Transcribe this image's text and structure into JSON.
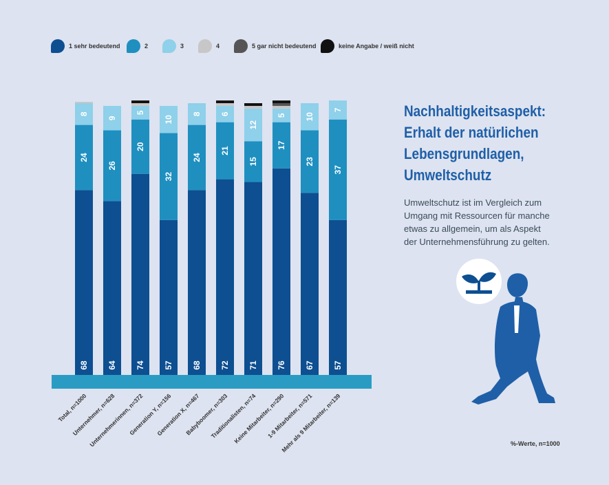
{
  "legend": [
    {
      "label": "1 sehr bedeutend",
      "color": "#0d4f91"
    },
    {
      "label": "2",
      "color": "#1f8fc0"
    },
    {
      "label": "3",
      "color": "#8fd0ea"
    },
    {
      "label": "4",
      "color": "#c7c7c7"
    },
    {
      "label": "5 gar nicht bedeutend",
      "color": "#555555"
    },
    {
      "label": "keine Angabe / weiß nicht",
      "color": "#111111"
    }
  ],
  "headline": [
    "Nachhaltigkeitsaspekt:",
    "Erhalt der natürlichen",
    "Lebensgrundlagen,",
    "Umweltschutz"
  ],
  "body_lines": [
    "Umweltschutz ist im Vergleich zum",
    "Umgang mit Ressourcen für manche",
    "etwas zu allgemein, um als Aspekt",
    "der Unternehmensführung zu gelten."
  ],
  "note": "%-Werte, n=1000",
  "icon": "sprout-icon",
  "chart_data": {
    "type": "bar",
    "stacked": true,
    "unit": "%",
    "ylim": [
      0,
      100
    ],
    "categories": [
      "Total, n=1000",
      "Unternehmer, n=628",
      "Unternehmerinnen, n=372",
      "Generation Y, n=156",
      "Generation X, n=467",
      "Babyboomer, n=303",
      "Traditionalisten, n=74",
      "Keine Mitarbeiter, n=290",
      "1-9 Mitarbeiter, n=571",
      "Mehr als 9 Mitarbeiter, n=139"
    ],
    "series": [
      {
        "name": "1 sehr bedeutend",
        "color": "#0d4f91",
        "values": [
          68,
          64,
          74,
          57,
          68,
          72,
          71,
          76,
          67,
          57
        ]
      },
      {
        "name": "2",
        "color": "#1f8fc0",
        "values": [
          24,
          26,
          20,
          32,
          24,
          21,
          15,
          17,
          23,
          37
        ]
      },
      {
        "name": "3",
        "color": "#8fd0ea",
        "values": [
          8,
          9,
          5,
          10,
          8,
          6,
          12,
          5,
          10,
          7
        ]
      },
      {
        "name": "4",
        "color": "#c7c7c7",
        "values": [
          0.5,
          0,
          1,
          0,
          0,
          1,
          1,
          1,
          0,
          0
        ]
      },
      {
        "name": "5 gar nicht bedeutend",
        "color": "#555555",
        "values": [
          0,
          0,
          0,
          0,
          0,
          0,
          0,
          1,
          0,
          0
        ]
      },
      {
        "name": "keine Angabe / weiß nicht",
        "color": "#111111",
        "values": [
          0,
          0,
          1,
          0,
          0,
          1,
          1,
          1,
          0,
          0
        ]
      }
    ],
    "data_labels": [
      [
        "68",
        "24",
        "8"
      ],
      [
        "64",
        "26",
        "9"
      ],
      [
        "74",
        "20",
        "5",
        "1"
      ],
      [
        "57",
        "32",
        "10"
      ],
      [
        "68",
        "24",
        "8"
      ],
      [
        "72",
        "21",
        "6",
        "1"
      ],
      [
        "71",
        "15",
        "12",
        "1"
      ],
      [
        "76",
        "17",
        "5",
        "1",
        "1"
      ],
      [
        "67",
        "23",
        "10"
      ],
      [
        "57",
        "37",
        "7"
      ]
    ]
  }
}
